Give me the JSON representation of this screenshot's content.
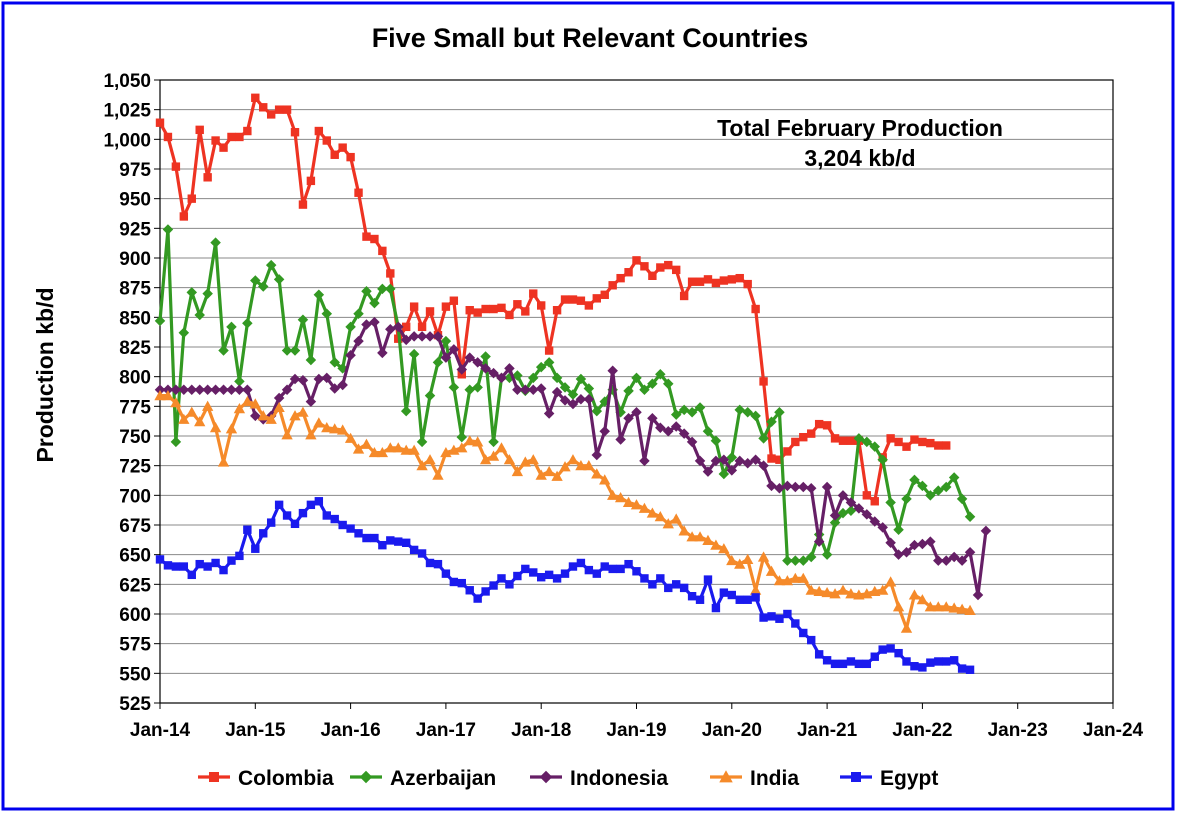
{
  "chart_data": {
    "type": "line",
    "title": "Five Small but Relevant Countries",
    "ylabel": "Production kb/d",
    "xlabel": "",
    "ylim": [
      525,
      1050
    ],
    "y_ticks": [
      "525",
      "550",
      "575",
      "600",
      "625",
      "650",
      "675",
      "700",
      "725",
      "750",
      "775",
      "800",
      "825",
      "850",
      "875",
      "900",
      "925",
      "950",
      "975",
      "1,000",
      "1,025",
      "1,050"
    ],
    "x_ticks": [
      "Jan-14",
      "Jan-15",
      "Jan-16",
      "Jan-17",
      "Jan-18",
      "Jan-19",
      "Jan-20",
      "Jan-21",
      "Jan-22",
      "Jan-23",
      "Jan-24"
    ],
    "grid": "horizontal",
    "legend": "bottom",
    "annotation": {
      "line1": "Total February Production",
      "line2": "3,204 kb/d"
    },
    "x_start": "Jan-14",
    "series": [
      {
        "name": "Colombia",
        "color": "#ee3322",
        "marker": "square",
        "values": [
          1014,
          1002,
          977,
          935,
          950,
          1008,
          968,
          999,
          993,
          1002,
          1002,
          1007,
          1035,
          1027,
          1021,
          1025,
          1025,
          1006,
          945,
          965,
          1007,
          999,
          987,
          993,
          985,
          955,
          918,
          916,
          906,
          887,
          832,
          842,
          859,
          842,
          855,
          835,
          859,
          864,
          802,
          856,
          854,
          857,
          857,
          858,
          852,
          861,
          855,
          870,
          860,
          822,
          856,
          865,
          865,
          864,
          860,
          866,
          869,
          877,
          883,
          888,
          898,
          893,
          885,
          892,
          894,
          890,
          868,
          880,
          880,
          882,
          879,
          881,
          882,
          883,
          878,
          857,
          796,
          731,
          730,
          737,
          745,
          749,
          752,
          760,
          759,
          748,
          746,
          746,
          746,
          700,
          695,
          732,
          748,
          745,
          741,
          747,
          745,
          744,
          742,
          742
        ]
      },
      {
        "name": "Azerbaijan",
        "color": "#339922",
        "marker": "diamond",
        "values": [
          847,
          924,
          745,
          837,
          871,
          852,
          870,
          913,
          822,
          842,
          796,
          845,
          881,
          876,
          894,
          882,
          822,
          822,
          848,
          814,
          869,
          853,
          812,
          807,
          842,
          853,
          872,
          862,
          874,
          874,
          842,
          771,
          819,
          745,
          784,
          812,
          830,
          791,
          749,
          789,
          791,
          817,
          745,
          799,
          799,
          801,
          788,
          799,
          808,
          812,
          799,
          791,
          785,
          798,
          790,
          771,
          779,
          789,
          770,
          788,
          799,
          789,
          794,
          802,
          794,
          768,
          772,
          770,
          774,
          754,
          746,
          718,
          732,
          772,
          770,
          767,
          748,
          762,
          770,
          645,
          645,
          645,
          648,
          667,
          650,
          677,
          685,
          687,
          748,
          745,
          741,
          730,
          694,
          671,
          697,
          713,
          708,
          700,
          704,
          707,
          715,
          697,
          682
        ]
      },
      {
        "name": "Indonesia",
        "color": "#661f66",
        "marker": "diamond",
        "values": [
          789,
          789,
          789,
          789,
          789,
          789,
          789,
          789,
          789,
          789,
          789,
          789,
          767,
          764,
          767,
          782,
          789,
          798,
          797,
          779,
          798,
          799,
          790,
          793,
          818,
          830,
          844,
          846,
          820,
          840,
          842,
          831,
          834,
          834,
          834,
          834,
          816,
          823,
          806,
          816,
          812,
          807,
          803,
          799,
          807,
          789,
          789,
          789,
          790,
          769,
          787,
          780,
          777,
          781,
          781,
          734,
          754,
          805,
          747,
          765,
          770,
          729,
          765,
          757,
          754,
          758,
          752,
          745,
          729,
          720,
          729,
          730,
          721,
          729,
          727,
          730,
          725,
          708,
          706,
          708,
          707,
          707,
          706,
          661,
          707,
          683,
          700,
          694,
          689,
          684,
          678,
          673,
          660,
          650,
          652,
          658,
          659,
          661,
          645,
          645,
          648,
          645,
          652,
          616,
          670
        ]
      },
      {
        "name": "India",
        "color": "#f58a2a",
        "marker": "triangle",
        "values": [
          784,
          784,
          778,
          764,
          770,
          762,
          775,
          757,
          728,
          756,
          773,
          779,
          777,
          767,
          764,
          774,
          751,
          767,
          770,
          751,
          761,
          757,
          756,
          755,
          748,
          739,
          743,
          736,
          736,
          740,
          740,
          738,
          738,
          725,
          730,
          717,
          736,
          738,
          740,
          746,
          745,
          730,
          733,
          740,
          730,
          720,
          728,
          730,
          717,
          720,
          716,
          724,
          730,
          725,
          725,
          718,
          713,
          700,
          698,
          694,
          692,
          689,
          685,
          682,
          676,
          680,
          670,
          665,
          665,
          662,
          658,
          655,
          645,
          642,
          646,
          620,
          648,
          636,
          628,
          628,
          630,
          630,
          620,
          619,
          618,
          617,
          620,
          617,
          616,
          617,
          619,
          620,
          627,
          606,
          588,
          616,
          612,
          606,
          606,
          606,
          605,
          604,
          603
        ]
      },
      {
        "name": "Egypt",
        "color": "#1a1aee",
        "marker": "square",
        "values": [
          646,
          641,
          640,
          640,
          633,
          642,
          640,
          643,
          637,
          645,
          649,
          671,
          655,
          668,
          677,
          692,
          683,
          676,
          685,
          692,
          695,
          683,
          680,
          675,
          672,
          668,
          664,
          664,
          658,
          662,
          661,
          660,
          654,
          651,
          643,
          642,
          634,
          627,
          626,
          620,
          613,
          619,
          624,
          630,
          625,
          632,
          638,
          635,
          631,
          633,
          630,
          634,
          640,
          643,
          637,
          634,
          640,
          638,
          638,
          642,
          636,
          630,
          625,
          630,
          622,
          625,
          622,
          615,
          612,
          629,
          605,
          618,
          616,
          612,
          612,
          614,
          597,
          598,
          596,
          600,
          592,
          584,
          578,
          566,
          561,
          558,
          558,
          560,
          558,
          558,
          564,
          570,
          571,
          567,
          560,
          556,
          555,
          559,
          560,
          560,
          561,
          554,
          553
        ]
      }
    ]
  }
}
